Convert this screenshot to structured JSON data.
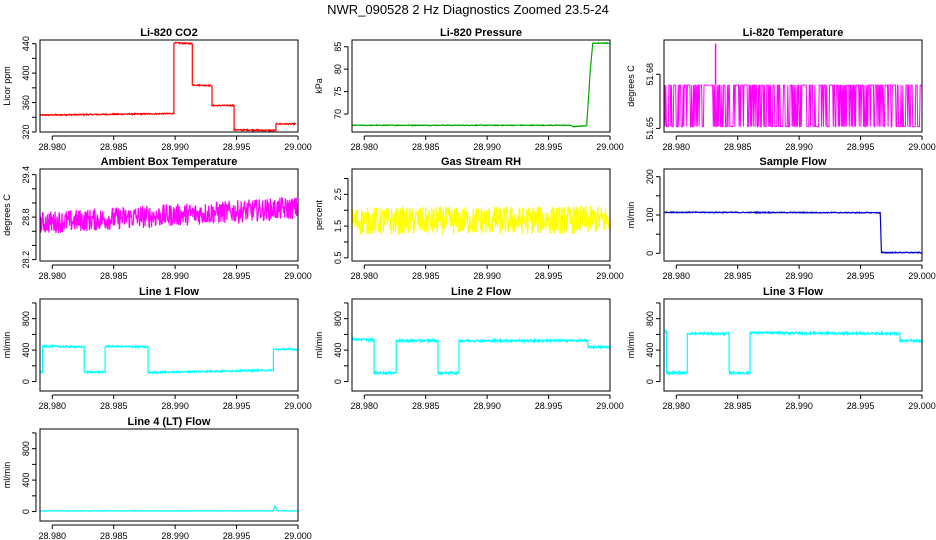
{
  "title": "NWR_090528  2 Hz Diagnostics Zoomed 23.5-24",
  "chart_data": [
    {
      "type": "line",
      "title": "Li-820 CO2",
      "xlabel": "",
      "ylabel": "Licor ppm",
      "color": "#ff0000",
      "xlim": [
        28.979,
        29.0
      ],
      "ylim": [
        320,
        445
      ],
      "xticks": [
        "28.980",
        "28.985",
        "28.990",
        "28.995",
        "29.000"
      ],
      "yticks": [
        320,
        340,
        360,
        380,
        400,
        420,
        440
      ],
      "ytick_labels": [
        "320",
        "",
        "360",
        "",
        "400",
        "",
        "440"
      ],
      "noise": 0.8,
      "series": [
        {
          "x": [
            28.979,
            28.9899,
            28.9899,
            28.9914,
            28.9914,
            28.993,
            28.993,
            28.9948,
            28.9948,
            28.9982,
            28.9982,
            28.9998
          ],
          "y": [
            343,
            345,
            441,
            440,
            384,
            383,
            356,
            356,
            323,
            322,
            331,
            331
          ]
        }
      ]
    },
    {
      "type": "line",
      "title": "Li-820 Pressure",
      "xlabel": "",
      "ylabel": "kPa",
      "color": "#00aa00",
      "xlim": [
        28.979,
        29.0
      ],
      "ylim": [
        66,
        86.5
      ],
      "xticks": [
        "28.980",
        "28.985",
        "28.990",
        "28.995",
        "29.000"
      ],
      "yticks": [
        70,
        75,
        80,
        85
      ],
      "ytick_labels": [
        "70",
        "75",
        "80",
        "85"
      ],
      "noise": 0.08,
      "series": [
        {
          "x": [
            28.979,
            28.9968,
            28.997,
            28.9981,
            28.9984,
            28.9986,
            28.9999
          ],
          "y": [
            67.5,
            67.5,
            67.2,
            67.4,
            80,
            85.8,
            85.8
          ]
        }
      ]
    },
    {
      "type": "line",
      "title": "Li-820 Temperature",
      "xlabel": "",
      "ylabel": "degrees C",
      "color": "#ff00ff",
      "xlim": [
        28.979,
        29.0
      ],
      "ylim": [
        51.648,
        51.699
      ],
      "xticks": [
        "28.980",
        "28.985",
        "28.990",
        "28.995",
        "29.000"
      ],
      "yticks": [
        51.65,
        51.68
      ],
      "ytick_labels": [
        "51.65",
        "51.68"
      ],
      "pattern": "toggle",
      "levels": [
        51.651,
        51.674
      ],
      "spike": {
        "x": 28.9832,
        "y": 51.697
      },
      "series": [
        {
          "x": [
            28.979,
            29.0
          ],
          "y": [
            51.651,
            51.674
          ]
        }
      ]
    },
    {
      "type": "line",
      "title": "Ambient Box Temperature",
      "xlabel": "",
      "ylabel": "degrees C",
      "color": "#ff00ff",
      "xlim": [
        28.979,
        29.0
      ],
      "ylim": [
        28.18,
        29.48
      ],
      "xticks": [
        "28.980",
        "28.985",
        "28.990",
        "28.995",
        "29.000"
      ],
      "yticks": [
        28.2,
        28.4,
        28.6,
        28.8,
        29.0,
        29.2,
        29.4
      ],
      "ytick_labels": [
        "28.2",
        "",
        "",
        "28.8",
        "",
        "",
        "29.4"
      ],
      "noise": 0.16,
      "series": [
        {
          "x": [
            28.979,
            28.99,
            29.0
          ],
          "y": [
            28.72,
            28.83,
            28.93
          ]
        }
      ]
    },
    {
      "type": "line",
      "title": "Gas Stream RH",
      "xlabel": "",
      "ylabel": "percent",
      "color": "#ffff00",
      "xlim": [
        28.979,
        29.0
      ],
      "ylim": [
        0.4,
        3.3
      ],
      "xticks": [
        "28.980",
        "28.985",
        "28.990",
        "28.995",
        "29.000"
      ],
      "yticks": [
        0.5,
        1.0,
        1.5,
        2.0,
        2.5,
        3.0
      ],
      "ytick_labels": [
        "0.5",
        "",
        "1.5",
        "",
        "2.5",
        ""
      ],
      "noise": 0.45,
      "series": [
        {
          "x": [
            28.979,
            29.0
          ],
          "y": [
            1.65,
            1.7
          ]
        }
      ]
    },
    {
      "type": "line",
      "title": "Sample Flow",
      "xlabel": "",
      "ylabel": "ml/min",
      "color": "#0000cc",
      "xlim": [
        28.979,
        29.0
      ],
      "ylim": [
        -20,
        220
      ],
      "xticks": [
        "28.980",
        "28.985",
        "28.990",
        "28.995",
        "29.000"
      ],
      "yticks": [
        0,
        50,
        100,
        150,
        200
      ],
      "ytick_labels": [
        "0",
        "",
        "100",
        "",
        "200"
      ],
      "noise": 1.2,
      "series": [
        {
          "x": [
            28.979,
            28.9966,
            28.9967,
            28.9999
          ],
          "y": [
            107,
            106,
            2,
            2
          ]
        }
      ]
    },
    {
      "type": "line",
      "title": "Line 1 Flow",
      "xlabel": "",
      "ylabel": "ml/min",
      "color": "#00ffff",
      "xlim": [
        28.979,
        29.0
      ],
      "ylim": [
        -120,
        1050
      ],
      "xticks": [
        "28.980",
        "28.985",
        "28.990",
        "28.995",
        "29.000"
      ],
      "yticks": [
        0,
        200,
        400,
        600,
        800,
        1000
      ],
      "ytick_labels": [
        "0",
        "",
        "400",
        "",
        "800",
        ""
      ],
      "noise": 10,
      "series": [
        {
          "x": [
            28.979,
            28.9792,
            28.9792,
            28.9826,
            28.9826,
            28.9843,
            28.9843,
            28.9878,
            28.9878,
            28.998,
            28.998,
            28.9999
          ],
          "y": [
            120,
            120,
            450,
            440,
            120,
            120,
            450,
            440,
            115,
            145,
            410,
            410
          ]
        }
      ]
    },
    {
      "type": "line",
      "title": "Line 2 Flow",
      "xlabel": "",
      "ylabel": "ml/min",
      "color": "#00ffff",
      "xlim": [
        28.979,
        29.0
      ],
      "ylim": [
        -120,
        1050
      ],
      "xticks": [
        "28.980",
        "28.985",
        "28.990",
        "28.995",
        "29.000"
      ],
      "yticks": [
        0,
        200,
        400,
        600,
        800,
        1000
      ],
      "ytick_labels": [
        "0",
        "",
        "400",
        "",
        "800",
        ""
      ],
      "noise": 14,
      "series": [
        {
          "x": [
            28.979,
            28.9808,
            28.9808,
            28.9826,
            28.9826,
            28.986,
            28.986,
            28.9877,
            28.9877,
            28.9982,
            28.9982,
            28.9999
          ],
          "y": [
            540,
            530,
            110,
            110,
            520,
            520,
            110,
            110,
            520,
            520,
            440,
            440
          ]
        }
      ]
    },
    {
      "type": "line",
      "title": "Line 3 Flow",
      "xlabel": "",
      "ylabel": "ml/min",
      "color": "#00ffff",
      "xlim": [
        28.979,
        29.0
      ],
      "ylim": [
        -120,
        1050
      ],
      "xticks": [
        "28.980",
        "28.985",
        "28.990",
        "28.995",
        "29.000"
      ],
      "yticks": [
        0,
        200,
        400,
        600,
        800,
        1000
      ],
      "ytick_labels": [
        "0",
        "",
        "400",
        "",
        "800",
        ""
      ],
      "noise": 14,
      "series": [
        {
          "x": [
            28.979,
            28.9792,
            28.9792,
            28.9809,
            28.9809,
            28.9843,
            28.9843,
            28.986,
            28.986,
            28.9982,
            28.9982,
            28.9999
          ],
          "y": [
            640,
            640,
            110,
            110,
            610,
            610,
            110,
            110,
            620,
            610,
            520,
            520
          ]
        }
      ]
    },
    {
      "type": "line",
      "title": "Line 4 (LT) Flow",
      "xlabel": "",
      "ylabel": "ml/min",
      "color": "#00ffff",
      "xlim": [
        28.979,
        29.0
      ],
      "ylim": [
        -120,
        1050
      ],
      "xticks": [
        "28.980",
        "28.985",
        "28.990",
        "28.995",
        "29.000"
      ],
      "yticks": [
        0,
        200,
        400,
        600,
        800,
        1000
      ],
      "ytick_labels": [
        "0",
        "",
        "400",
        "",
        "800",
        ""
      ],
      "noise": 3,
      "series": [
        {
          "x": [
            28.979,
            28.998,
            28.9981,
            28.9983,
            28.9999
          ],
          "y": [
            8,
            8,
            70,
            10,
            8
          ]
        }
      ]
    }
  ]
}
